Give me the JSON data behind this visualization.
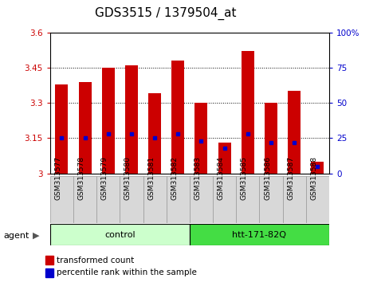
{
  "title": "GDS3515 / 1379504_at",
  "samples": [
    "GSM313577",
    "GSM313578",
    "GSM313579",
    "GSM313580",
    "GSM313581",
    "GSM313582",
    "GSM313583",
    "GSM313584",
    "GSM313585",
    "GSM313586",
    "GSM313587",
    "GSM313588"
  ],
  "red_values": [
    3.38,
    3.39,
    3.45,
    3.46,
    3.34,
    3.48,
    3.3,
    3.13,
    3.52,
    3.3,
    3.35,
    3.05
  ],
  "blue_values_pct": [
    25,
    25,
    28,
    28,
    25,
    28,
    23,
    18,
    28,
    22,
    22,
    5
  ],
  "ylim_left": [
    3.0,
    3.6
  ],
  "ylim_right": [
    0,
    100
  ],
  "yticks_left": [
    3.0,
    3.15,
    3.3,
    3.45,
    3.6
  ],
  "yticks_right": [
    0,
    25,
    50,
    75,
    100
  ],
  "ytick_labels_left": [
    "3",
    "3.15",
    "3.3",
    "3.45",
    "3.6"
  ],
  "ytick_labels_right": [
    "0",
    "25",
    "50",
    "75",
    "100%"
  ],
  "hgrid_vals": [
    3.15,
    3.3,
    3.45
  ],
  "bar_color": "#cc0000",
  "dot_color": "#0000cc",
  "control_color_light": "#ccffcc",
  "control_color_dark": "#44dd44",
  "title_fontsize": 11,
  "tick_fontsize": 7.5,
  "label_fontsize": 6.5,
  "group_fontsize": 8,
  "legend_fontsize": 7.5,
  "bar_width": 0.55,
  "legend_items": [
    "transformed count",
    "percentile rank within the sample"
  ],
  "agent_label": "agent",
  "groups_info": [
    {
      "label": "control",
      "start": 0,
      "end": 5
    },
    {
      "label": "htt-171-82Q",
      "start": 6,
      "end": 11
    }
  ]
}
